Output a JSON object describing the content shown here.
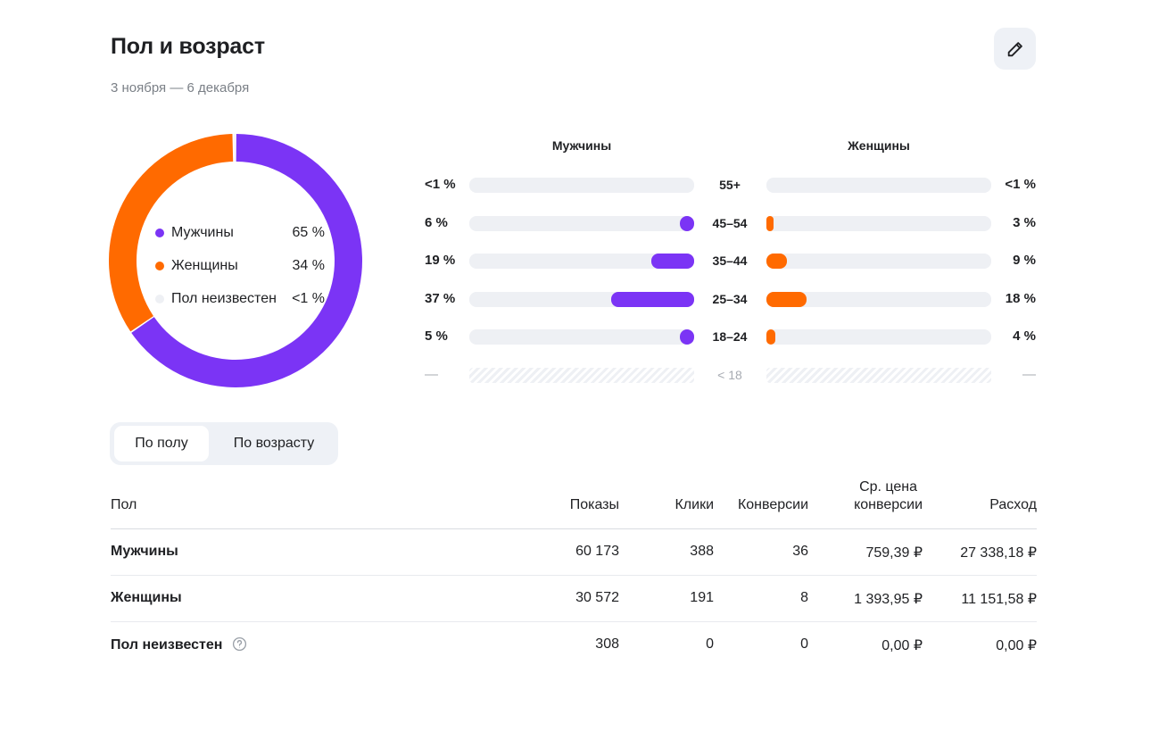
{
  "header": {
    "title": "Пол и возраст",
    "period": "3 ноября — 6 декабря",
    "edit_icon": "pencil-icon"
  },
  "colors": {
    "male": "#7b34f5",
    "female": "#ff6a00",
    "unknown": "#eef0f4"
  },
  "chart_data": [
    {
      "type": "pie",
      "variant": "donut",
      "categories": [
        "Мужчины",
        "Женщины",
        "Пол неизвестен"
      ],
      "values": [
        65,
        34,
        0.3
      ],
      "labels": [
        "65 %",
        "34 %",
        "<1 %"
      ],
      "legend_placement": "center"
    },
    {
      "type": "bar",
      "orientation": "horizontal",
      "layout": "butterfly",
      "series_headers": [
        "Мужчины",
        "Женщины"
      ],
      "categories": [
        "55+",
        "45–54",
        "35–44",
        "25–34",
        "18–24",
        "< 18"
      ],
      "series": [
        {
          "name": "Мужчины",
          "values": [
            0.3,
            6,
            19,
            37,
            5,
            null
          ],
          "labels": [
            "<1 %",
            "6 %",
            "19 %",
            "37 %",
            "5 %",
            "—"
          ]
        },
        {
          "name": "Женщины",
          "values": [
            0.3,
            3,
            9,
            18,
            4,
            null
          ],
          "labels": [
            "<1 %",
            "3 %",
            "9 %",
            "18 %",
            "4 %",
            "—"
          ]
        }
      ],
      "xlim": [
        0,
        100
      ],
      "unavailable_category": "< 18"
    }
  ],
  "switch": {
    "options": [
      "По полу",
      "По возрасту"
    ],
    "selected": "По полу"
  },
  "table": {
    "headers": {
      "gender": "Пол",
      "impressions": "Показы",
      "clicks": "Клики",
      "conversions": "Конверсии",
      "cpa_line1": "Ср. цена",
      "cpa_line2": "конверсии",
      "spend": "Расход"
    },
    "rows": [
      {
        "gender": "Мужчины",
        "impressions": "60 173",
        "clicks": "388",
        "conversions": "36",
        "cpa": "759,39 ₽",
        "spend": "27 338,18 ₽"
      },
      {
        "gender": "Женщины",
        "impressions": "30 572",
        "clicks": "191",
        "conversions": "8",
        "cpa": "1 393,95 ₽",
        "spend": "11 151,58 ₽"
      },
      {
        "gender": "Пол неизвестен",
        "impressions": "308",
        "clicks": "0",
        "conversions": "0",
        "cpa": "0,00 ₽",
        "spend": "0,00 ₽",
        "help_icon": "question-circle-icon"
      }
    ]
  }
}
